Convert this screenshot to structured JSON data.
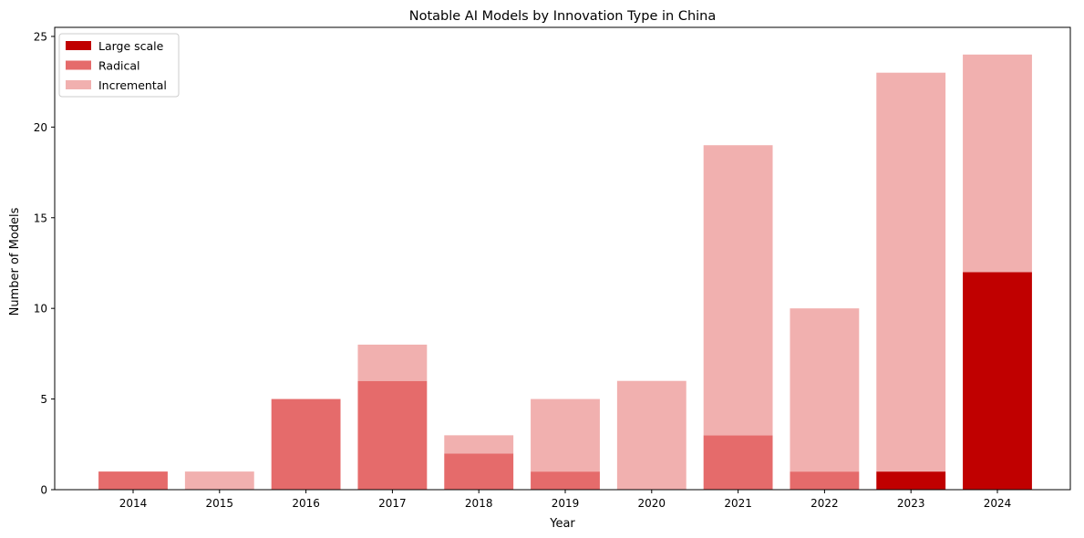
{
  "chart_data": {
    "type": "bar",
    "stacked": true,
    "title": "Notable AI Models by Innovation Type in China",
    "xlabel": "Year",
    "ylabel": "Number of Models",
    "ylim": [
      0,
      25
    ],
    "yticks": [
      0,
      5,
      10,
      15,
      20,
      25
    ],
    "grid": false,
    "legend_position": "top-left",
    "categories": [
      "2014",
      "2015",
      "2016",
      "2017",
      "2018",
      "2019",
      "2020",
      "2021",
      "2022",
      "2023",
      "2024"
    ],
    "series": [
      {
        "name": "Large scale",
        "color": "#c00000",
        "values": [
          0,
          0,
          0,
          0,
          0,
          0,
          0,
          0,
          0,
          1,
          12
        ]
      },
      {
        "name": "Radical",
        "color": "#e56b6b",
        "values": [
          1,
          0,
          5,
          6,
          2,
          1,
          0,
          3,
          1,
          0,
          0
        ]
      },
      {
        "name": "Incremental",
        "color": "#f1b0af",
        "values": [
          0,
          1,
          0,
          2,
          1,
          4,
          6,
          16,
          9,
          22,
          12
        ]
      }
    ]
  }
}
